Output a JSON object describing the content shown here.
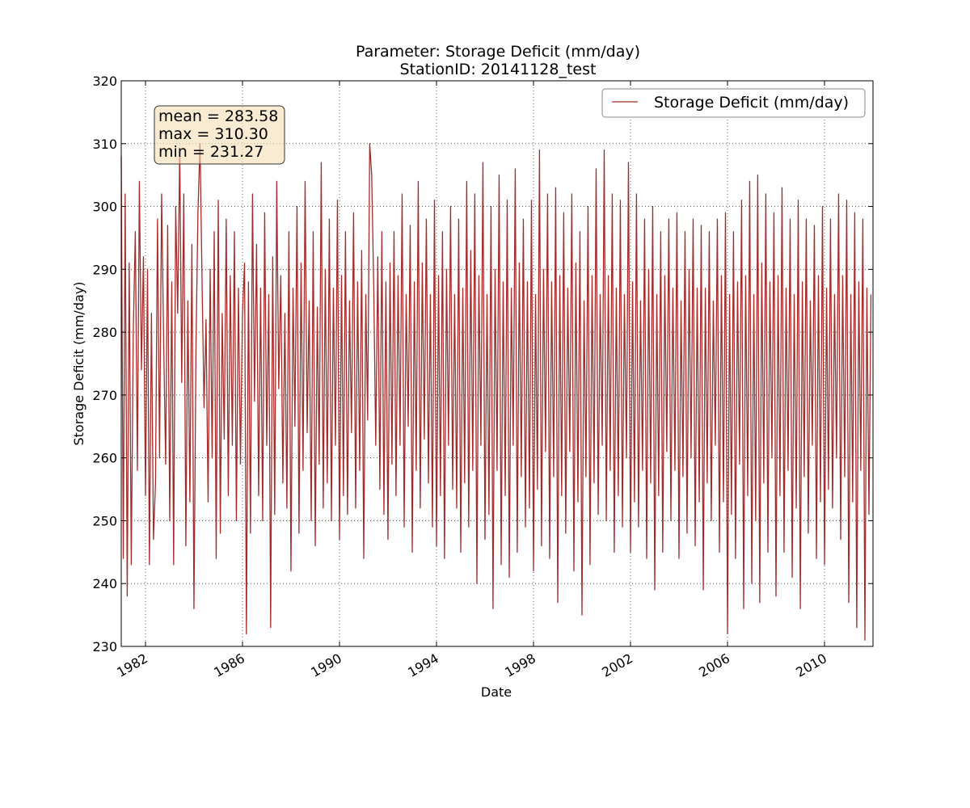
{
  "chart_data": {
    "type": "line",
    "title_line1": "Parameter: Storage Deficit (mm/day)",
    "title_line2": "StationID: 20141128_test",
    "xlabel": "Date",
    "ylabel": "Storage Deficit (mm/day)",
    "xlim": [
      "1981-01-01",
      "2012-01-01"
    ],
    "ylim": [
      230,
      320
    ],
    "y_ticks": [
      230,
      240,
      250,
      260,
      270,
      280,
      290,
      300,
      310,
      320
    ],
    "x_ticks": [
      {
        "label": "1982",
        "date": "1982-01-01"
      },
      {
        "label": "1986",
        "date": "1986-01-01"
      },
      {
        "label": "1990",
        "date": "1990-01-01"
      },
      {
        "label": "1994",
        "date": "1994-01-01"
      },
      {
        "label": "1998",
        "date": "1998-01-01"
      },
      {
        "label": "2002",
        "date": "2002-01-01"
      },
      {
        "label": "2006",
        "date": "2006-01-01"
      },
      {
        "label": "2010",
        "date": "2010-01-01"
      }
    ],
    "grid": true,
    "legend_position": "top-right",
    "series": [
      {
        "name": "Storage Deficit (mm/day)",
        "color": "#a52a2a",
        "x": [
          "1981-01-01",
          "1981-02-01",
          "1981-03-01",
          "1981-04-01",
          "1981-05-01",
          "1981-06-01",
          "1981-07-01",
          "1981-08-01",
          "1981-09-01",
          "1981-10-01",
          "1981-11-01",
          "1981-12-01",
          "1982-01-01",
          "1982-02-01",
          "1982-03-01",
          "1982-04-01",
          "1982-05-01",
          "1982-06-01",
          "1982-07-01",
          "1982-08-01",
          "1982-09-01",
          "1982-10-01",
          "1982-11-01",
          "1982-12-01",
          "1983-01-01",
          "1983-02-01",
          "1983-03-01",
          "1983-04-01",
          "1983-05-01",
          "1983-06-01",
          "1983-07-01",
          "1983-08-01",
          "1983-09-01",
          "1983-10-01",
          "1983-11-01",
          "1983-12-01",
          "1984-01-01",
          "1984-02-01",
          "1984-03-01",
          "1984-04-01",
          "1984-05-01",
          "1984-06-01",
          "1984-07-01",
          "1984-08-01",
          "1984-09-01",
          "1984-10-01",
          "1984-11-01",
          "1984-12-01",
          "1985-01-01",
          "1985-02-01",
          "1985-03-01",
          "1985-04-01",
          "1985-05-01",
          "1985-06-01",
          "1985-07-01",
          "1985-08-01",
          "1985-09-01",
          "1985-10-01",
          "1985-11-01",
          "1985-12-01",
          "1986-01-01",
          "1986-02-01",
          "1986-03-01",
          "1986-04-01",
          "1986-05-01",
          "1986-06-01",
          "1986-07-01",
          "1986-08-01",
          "1986-09-01",
          "1986-10-01",
          "1986-11-01",
          "1986-12-01",
          "1987-01-01",
          "1987-02-01",
          "1987-03-01",
          "1987-04-01",
          "1987-05-01",
          "1987-06-01",
          "1987-07-01",
          "1987-08-01",
          "1987-09-01",
          "1987-10-01",
          "1987-11-01",
          "1987-12-01",
          "1988-01-01",
          "1988-02-01",
          "1988-03-01",
          "1988-04-01",
          "1988-05-01",
          "1988-06-01",
          "1988-07-01",
          "1988-08-01",
          "1988-09-01",
          "1988-10-01",
          "1988-11-01",
          "1988-12-01",
          "1989-01-01",
          "1989-02-01",
          "1989-03-01",
          "1989-04-01",
          "1989-05-01",
          "1989-06-01",
          "1989-07-01",
          "1989-08-01",
          "1989-09-01",
          "1989-10-01",
          "1989-11-01",
          "1989-12-01",
          "1990-01-01",
          "1990-02-01",
          "1990-03-01",
          "1990-04-01",
          "1990-05-01",
          "1990-06-01",
          "1990-07-01",
          "1990-08-01",
          "1990-09-01",
          "1990-10-01",
          "1990-11-01",
          "1990-12-01",
          "1991-01-01",
          "1991-02-01",
          "1991-03-01",
          "1991-04-01",
          "1991-05-01",
          "1991-06-01",
          "1991-07-01",
          "1991-08-01",
          "1991-09-01",
          "1991-10-01",
          "1991-11-01",
          "1991-12-01",
          "1992-01-01",
          "1992-02-01",
          "1992-03-01",
          "1992-04-01",
          "1992-05-01",
          "1992-06-01",
          "1992-07-01",
          "1992-08-01",
          "1992-09-01",
          "1992-10-01",
          "1992-11-01",
          "1992-12-01",
          "1993-01-01",
          "1993-02-01",
          "1993-03-01",
          "1993-04-01",
          "1993-05-01",
          "1993-06-01",
          "1993-07-01",
          "1993-08-01",
          "1993-09-01",
          "1993-10-01",
          "1993-11-01",
          "1993-12-01",
          "1994-01-01",
          "1994-02-01",
          "1994-03-01",
          "1994-04-01",
          "1994-05-01",
          "1994-06-01",
          "1994-07-01",
          "1994-08-01",
          "1994-09-01",
          "1994-10-01",
          "1994-11-01",
          "1994-12-01",
          "1995-01-01",
          "1995-02-01",
          "1995-03-01",
          "1995-04-01",
          "1995-05-01",
          "1995-06-01",
          "1995-07-01",
          "1995-08-01",
          "1995-09-01",
          "1995-10-01",
          "1995-11-01",
          "1995-12-01",
          "1996-01-01",
          "1996-02-01",
          "1996-03-01",
          "1996-04-01",
          "1996-05-01",
          "1996-06-01",
          "1996-07-01",
          "1996-08-01",
          "1996-09-01",
          "1996-10-01",
          "1996-11-01",
          "1996-12-01",
          "1997-01-01",
          "1997-02-01",
          "1997-03-01",
          "1997-04-01",
          "1997-05-01",
          "1997-06-01",
          "1997-07-01",
          "1997-08-01",
          "1997-09-01",
          "1997-10-01",
          "1997-11-01",
          "1997-12-01",
          "1998-01-01",
          "1998-02-01",
          "1998-03-01",
          "1998-04-01",
          "1998-05-01",
          "1998-06-01",
          "1998-07-01",
          "1998-08-01",
          "1998-09-01",
          "1998-10-01",
          "1998-11-01",
          "1998-12-01",
          "1999-01-01",
          "1999-02-01",
          "1999-03-01",
          "1999-04-01",
          "1999-05-01",
          "1999-06-01",
          "1999-07-01",
          "1999-08-01",
          "1999-09-01",
          "1999-10-01",
          "1999-11-01",
          "1999-12-01",
          "2000-01-01",
          "2000-02-01",
          "2000-03-01",
          "2000-04-01",
          "2000-05-01",
          "2000-06-01",
          "2000-07-01",
          "2000-08-01",
          "2000-09-01",
          "2000-10-01",
          "2000-11-01",
          "2000-12-01",
          "2001-01-01",
          "2001-02-01",
          "2001-03-01",
          "2001-04-01",
          "2001-05-01",
          "2001-06-01",
          "2001-07-01",
          "2001-08-01",
          "2001-09-01",
          "2001-10-01",
          "2001-11-01",
          "2001-12-01",
          "2002-01-01",
          "2002-02-01",
          "2002-03-01",
          "2002-04-01",
          "2002-05-01",
          "2002-06-01",
          "2002-07-01",
          "2002-08-01",
          "2002-09-01",
          "2002-10-01",
          "2002-11-01",
          "2002-12-01",
          "2003-01-01",
          "2003-02-01",
          "2003-03-01",
          "2003-04-01",
          "2003-05-01",
          "2003-06-01",
          "2003-07-01",
          "2003-08-01",
          "2003-09-01",
          "2003-10-01",
          "2003-11-01",
          "2003-12-01",
          "2004-01-01",
          "2004-02-01",
          "2004-03-01",
          "2004-04-01",
          "2004-05-01",
          "2004-06-01",
          "2004-07-01",
          "2004-08-01",
          "2004-09-01",
          "2004-10-01",
          "2004-11-01",
          "2004-12-01",
          "2005-01-01",
          "2005-02-01",
          "2005-03-01",
          "2005-04-01",
          "2005-05-01",
          "2005-06-01",
          "2005-07-01",
          "2005-08-01",
          "2005-09-01",
          "2005-10-01",
          "2005-11-01",
          "2005-12-01",
          "2006-01-01",
          "2006-02-01",
          "2006-03-01",
          "2006-04-01",
          "2006-05-01",
          "2006-06-01",
          "2006-07-01",
          "2006-08-01",
          "2006-09-01",
          "2006-10-01",
          "2006-11-01",
          "2006-12-01",
          "2007-01-01",
          "2007-02-01",
          "2007-03-01",
          "2007-04-01",
          "2007-05-01",
          "2007-06-01",
          "2007-07-01",
          "2007-08-01",
          "2007-09-01",
          "2007-10-01",
          "2007-11-01",
          "2007-12-01",
          "2008-01-01",
          "2008-02-01",
          "2008-03-01",
          "2008-04-01",
          "2008-05-01",
          "2008-06-01",
          "2008-07-01",
          "2008-08-01",
          "2008-09-01",
          "2008-10-01",
          "2008-11-01",
          "2008-12-01",
          "2009-01-01",
          "2009-02-01",
          "2009-03-01",
          "2009-04-01",
          "2009-05-01",
          "2009-06-01",
          "2009-07-01",
          "2009-08-01",
          "2009-09-01",
          "2009-10-01",
          "2009-11-01",
          "2009-12-01",
          "2010-01-01",
          "2010-02-01",
          "2010-03-01",
          "2010-04-01",
          "2010-05-01",
          "2010-06-01",
          "2010-07-01",
          "2010-08-01",
          "2010-09-01",
          "2010-10-01",
          "2010-11-01",
          "2010-12-01",
          "2011-01-01",
          "2011-02-01",
          "2011-03-01",
          "2011-04-01",
          "2011-05-01",
          "2011-06-01",
          "2011-07-01",
          "2011-08-01",
          "2011-09-01",
          "2011-10-01",
          "2011-11-01",
          "2011-12-01"
        ],
        "values": [
          308,
          244,
          302,
          238,
          291,
          243,
          280,
          296,
          258,
          304,
          274,
          292,
          254,
          290,
          243,
          283,
          247,
          256,
          298,
          260,
          302,
          279,
          259,
          297,
          250,
          288,
          243,
          300,
          283,
          309,
          272,
          302,
          246,
          285,
          253,
          294,
          236,
          278,
          299,
          310,
          289,
          268,
          282,
          253,
          290,
          260,
          296,
          244,
          301,
          248,
          283,
          263,
          298,
          254,
          289,
          262,
          296,
          250,
          287,
          259,
          283,
          291,
          232,
          288,
          248,
          302,
          269,
          294,
          254,
          287,
          250,
          299,
          262,
          286,
          233,
          292,
          251,
          304,
          271,
          289,
          256,
          283,
          252,
          296,
          242,
          287,
          265,
          300,
          248,
          291,
          258,
          304,
          264,
          285,
          250,
          296,
          246,
          284,
          259,
          307,
          252,
          290,
          256,
          298,
          250,
          287,
          262,
          301,
          247,
          289,
          254,
          296,
          251,
          285,
          264,
          299,
          252,
          288,
          258,
          293,
          244,
          286,
          266,
          310,
          305,
          287,
          262,
          292,
          255,
          296,
          251,
          288,
          247,
          291,
          259,
          296,
          254,
          289,
          262,
          302,
          249,
          286,
          265,
          297,
          245,
          288,
          258,
          304,
          252,
          291,
          263,
          298,
          256,
          286,
          249,
          301,
          246,
          289,
          254,
          296,
          244,
          290,
          262,
          300,
          255,
          286,
          252,
          298,
          245,
          287,
          256,
          304,
          249,
          293,
          258,
          302,
          240,
          289,
          262,
          307,
          247,
          286,
          251,
          300,
          236,
          290,
          258,
          305,
          243,
          288,
          254,
          301,
          241,
          287,
          262,
          306,
          245,
          291,
          257,
          298,
          249,
          288,
          252,
          301,
          242,
          286,
          255,
          309,
          246,
          290,
          261,
          302,
          244,
          288,
          257,
          303,
          237,
          289,
          254,
          299,
          248,
          287,
          261,
          302,
          242,
          291,
          253,
          296,
          235,
          285,
          257,
          300,
          243,
          289,
          256,
          306,
          251,
          286,
          262,
          309,
          250,
          289,
          258,
          302,
          245,
          287,
          254,
          301,
          249,
          286,
          260,
          307,
          245,
          288,
          253,
          302,
          249,
          285,
          258,
          298,
          244,
          290,
          256,
          300,
          239,
          286,
          254,
          296,
          245,
          289,
          261,
          298,
          250,
          287,
          258,
          299,
          244,
          285,
          257,
          296,
          248,
          290,
          260,
          298,
          246,
          287,
          253,
          297,
          239,
          287,
          256,
          296,
          250,
          285,
          262,
          298,
          245,
          289,
          253,
          299,
          232,
          286,
          251,
          296,
          244,
          288,
          259,
          301,
          236,
          289,
          254,
          304,
          240,
          286,
          250,
          305,
          237,
          291,
          256,
          302,
          245,
          288,
          260,
          299,
          238,
          289,
          254,
          303,
          245,
          287,
          258,
          298,
          241,
          286,
          252,
          301,
          236,
          288,
          257,
          298,
          248,
          285,
          262,
          297,
          244,
          289,
          253,
          300,
          243,
          287,
          255,
          298,
          252,
          286,
          260,
          302,
          247,
          289,
          257,
          301,
          237,
          286,
          253,
          299,
          233,
          288,
          258,
          298,
          231,
          287,
          251,
          286
        ]
      }
    ],
    "stats": {
      "mean_text": "mean = 283.58",
      "max_text": "max = 310.30",
      "min_text": "min = 231.27"
    },
    "stats_box_fill": "#f5deb3",
    "line_color": "#a52a2a"
  }
}
